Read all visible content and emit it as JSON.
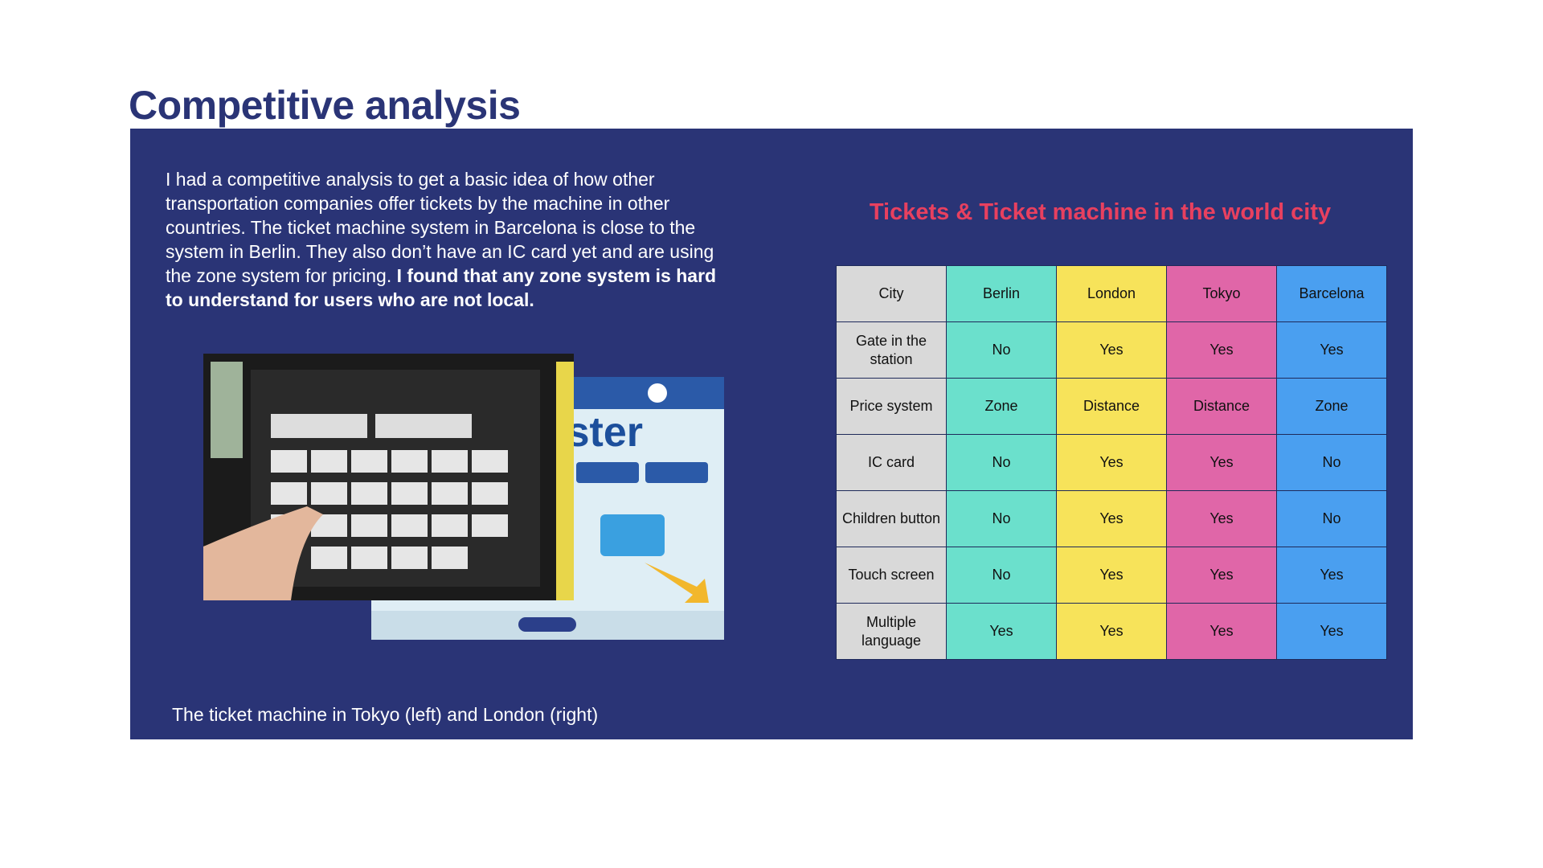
{
  "header": {
    "title": "Competitive analysis"
  },
  "intro": {
    "text": "I had a competitive analysis to get a basic idea of how other transportation companies offer tickets by the machine in other countries. The ticket machine system in Barcelona is close to the system in Berlin. They also don’t have an IC card yet and are using the zone system for pricing.",
    "bold": "I found that any zone system is hard to understand for users who are not local."
  },
  "photos": {
    "oyster": "oyster",
    "caption": "The ticket machine in Tokyo (left) and London (right)"
  },
  "table": {
    "title": "Tickets & Ticket machine in the world city",
    "header": [
      "City",
      "Berlin",
      "London",
      "Tokyo",
      "Barcelona"
    ],
    "rows": [
      [
        "Gate in the station",
        "No",
        "Yes",
        "Yes",
        "Yes"
      ],
      [
        "Price system",
        "Zone",
        "Distance",
        "Distance",
        "Zone"
      ],
      [
        "IC card",
        "No",
        "Yes",
        "Yes",
        "No"
      ],
      [
        "Children button",
        "No",
        "Yes",
        "Yes",
        "No"
      ],
      [
        "Touch screen",
        "No",
        "Yes",
        "Yes",
        "Yes"
      ],
      [
        "Multiple language",
        "Yes",
        "Yes",
        "Yes",
        "Yes"
      ]
    ]
  }
}
